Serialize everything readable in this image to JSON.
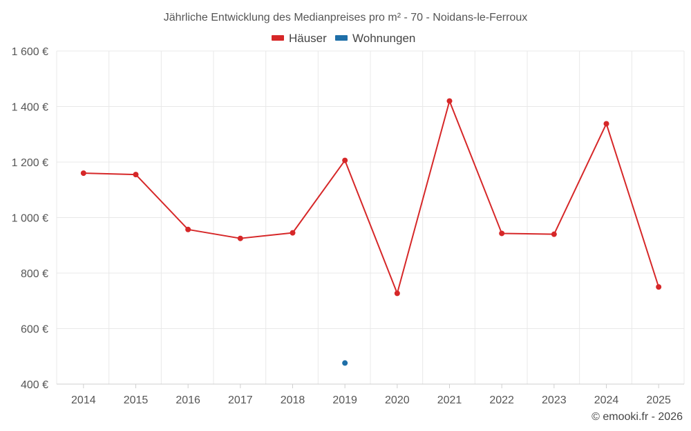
{
  "chart_data": {
    "type": "line",
    "title": "Jährliche Entwicklung des Medianpreises pro m² - 70 - Noidans-le-Ferroux",
    "categories": [
      "2014",
      "2015",
      "2016",
      "2017",
      "2018",
      "2019",
      "2020",
      "2021",
      "2022",
      "2023",
      "2024",
      "2025"
    ],
    "series": [
      {
        "name": "Häuser",
        "color": "#d62728",
        "values": [
          1160,
          1155,
          957,
          925,
          945,
          1206,
          727,
          1420,
          943,
          940,
          1338,
          750
        ]
      },
      {
        "name": "Wohnungen",
        "color": "#1f6fa8",
        "values": [
          null,
          null,
          null,
          null,
          null,
          476,
          null,
          null,
          null,
          null,
          null,
          null
        ]
      }
    ],
    "y_ticks": [
      "400 €",
      "600 €",
      "800 €",
      "1 000 €",
      "1 200 €",
      "1 400 €",
      "1 600 €"
    ],
    "y_tick_values": [
      400,
      600,
      800,
      1000,
      1200,
      1400,
      1600
    ],
    "ylim": [
      400,
      1600
    ],
    "legend_position": "top-center",
    "grid": true
  },
  "credit": "© emooki.fr - 2026"
}
